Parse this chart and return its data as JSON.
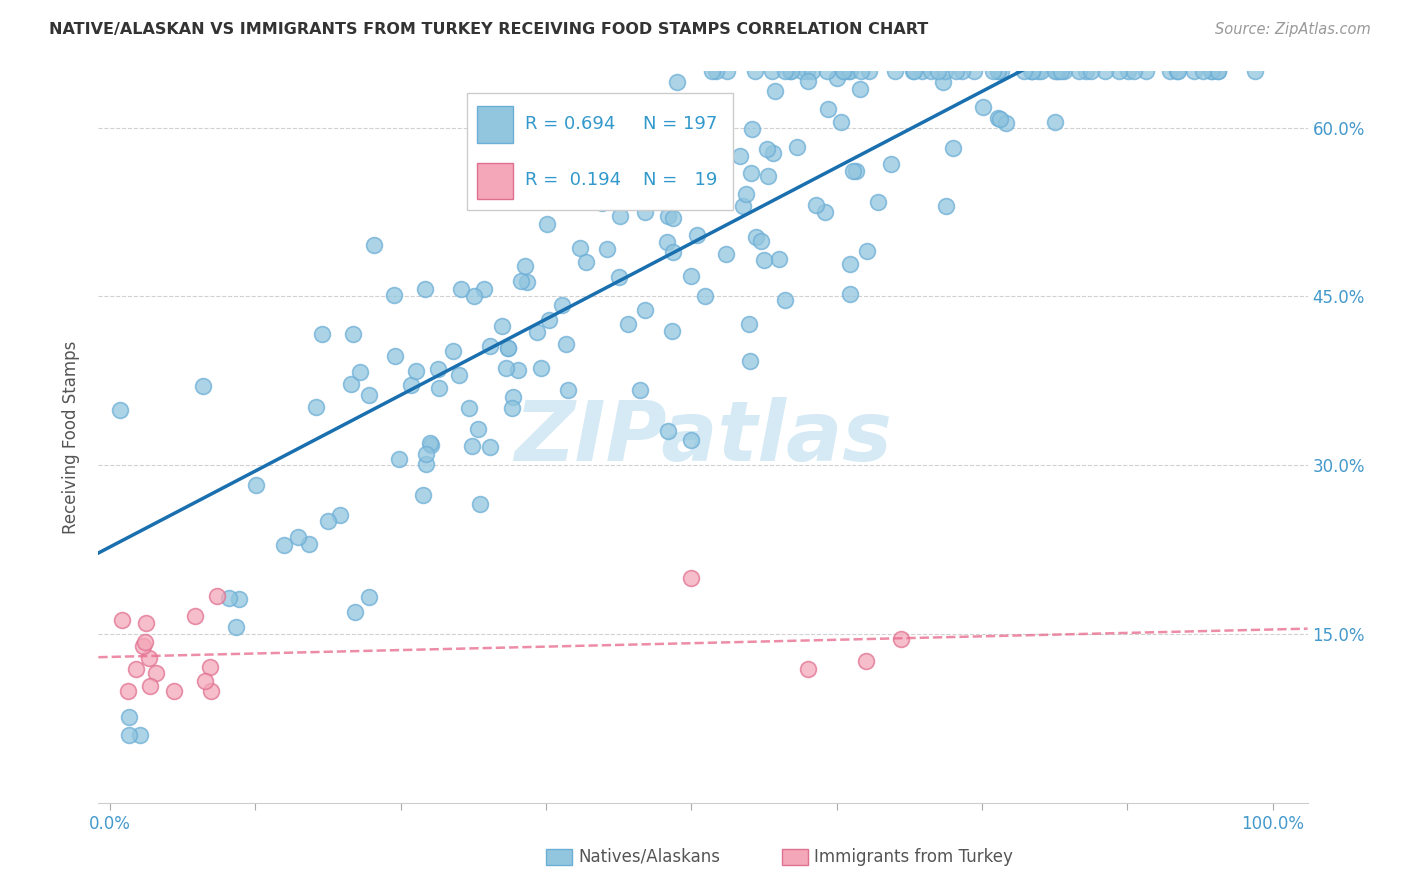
{
  "title": "NATIVE/ALASKAN VS IMMIGRANTS FROM TURKEY RECEIVING FOOD STAMPS CORRELATION CHART",
  "source": "Source: ZipAtlas.com",
  "ylabel": "Receiving Food Stamps",
  "yticks": [
    0.15,
    0.3,
    0.45,
    0.6
  ],
  "ytick_labels": [
    "15.0%",
    "30.0%",
    "45.0%",
    "60.0%"
  ],
  "xtick_labels": [
    "0.0%",
    "",
    "",
    "",
    "",
    "",
    "",
    "",
    "100.0%"
  ],
  "xtick_vals": [
    0.0,
    0.125,
    0.25,
    0.375,
    0.5,
    0.625,
    0.75,
    0.875,
    1.0
  ],
  "legend_blue_R": "0.694",
  "legend_blue_N": "197",
  "legend_pink_R": "0.194",
  "legend_pink_N": "19",
  "legend_label_blue": "Natives/Alaskans",
  "legend_label_pink": "Immigrants from Turkey",
  "blue_scatter_color": "#92c5de",
  "blue_scatter_edge": "#6baed6",
  "pink_scatter_color": "#f4a7b9",
  "pink_scatter_edge": "#e07090",
  "blue_line_color": "#1a6faf",
  "pink_line_color": "#e87090",
  "grid_color": "#cccccc",
  "tick_color": "#4499cc",
  "text_color": "#333333",
  "source_color": "#999999",
  "watermark_color": "#d5eaf5",
  "watermark_text": "ZIPatlas",
  "legend_text_dark": "#333333",
  "legend_text_blue": "#3399cc",
  "ylim_min": 0.0,
  "ylim_max": 0.65,
  "xlim_min": -0.01,
  "xlim_max": 1.03
}
